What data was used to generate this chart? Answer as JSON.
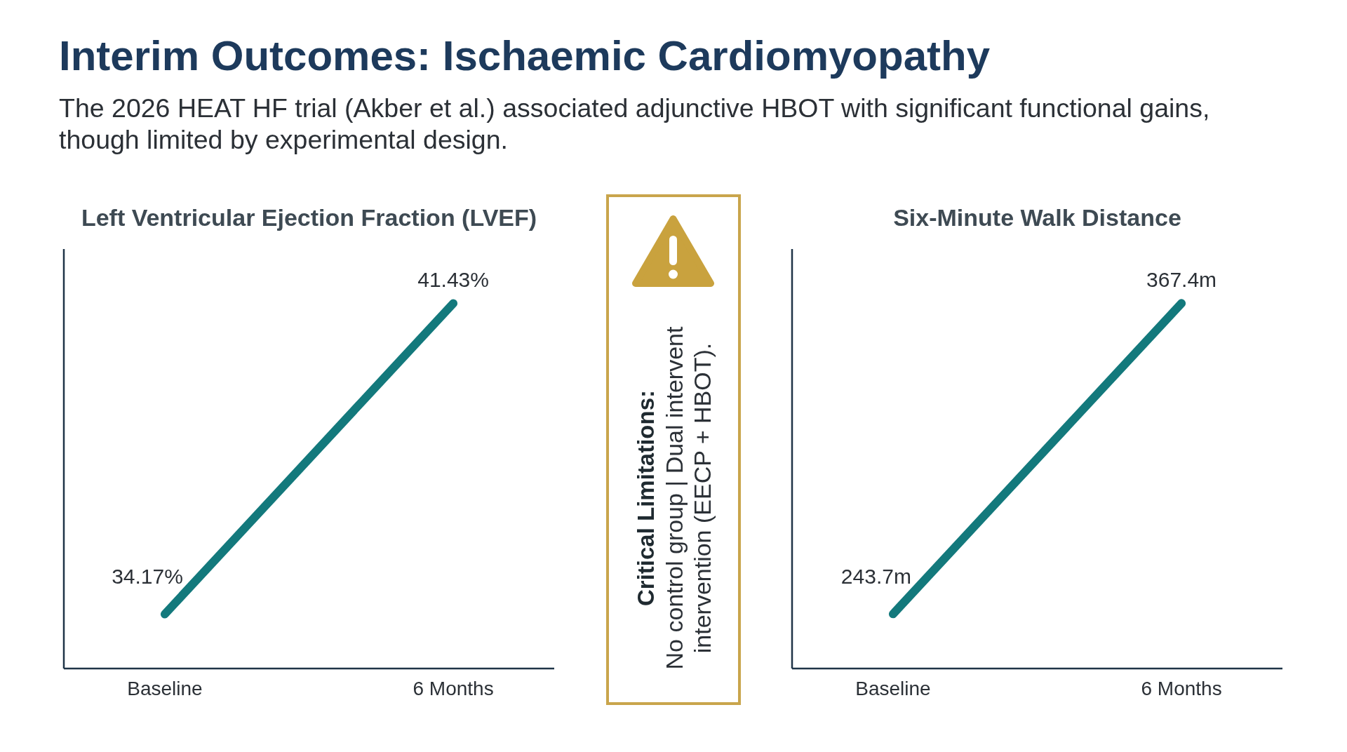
{
  "chart_data": [
    {
      "type": "other",
      "title": "Interim Outcomes: Ischaemic Cardiomyopathy",
      "subtitle": "The 2026 HEAT HF trial (Akber et al.) associated adjunctive HBOT with significant functional gains, though limited by experimental design."
    },
    {
      "type": "line",
      "title": "Left Ventricular Ejection Fraction (LVEF)",
      "categories": [
        "Baseline",
        "6 Months"
      ],
      "values": [
        34.17,
        41.43
      ],
      "value_labels": [
        "34.17%",
        "41.43%"
      ],
      "color": "#13797c",
      "ylim": [
        32.9,
        42.7
      ],
      "marker": "none",
      "line_style": "solid",
      "tick_labels": "x"
    },
    {
      "type": "other",
      "title": "Critical Limitations:",
      "annotations": [
        "No control group | Dual intervent intervention (EECP + HBOT)."
      ]
    },
    {
      "type": "line",
      "title": "Six-Minute Walk Distance",
      "categories": [
        "Baseline",
        "6 Months"
      ],
      "values": [
        243.7,
        367.4
      ],
      "value_labels": [
        "243.7m",
        "367.4m"
      ],
      "color": "#13797c",
      "ylim": [
        222,
        389
      ],
      "marker": "none",
      "line_style": "solid",
      "tick_labels": "x"
    }
  ]
}
